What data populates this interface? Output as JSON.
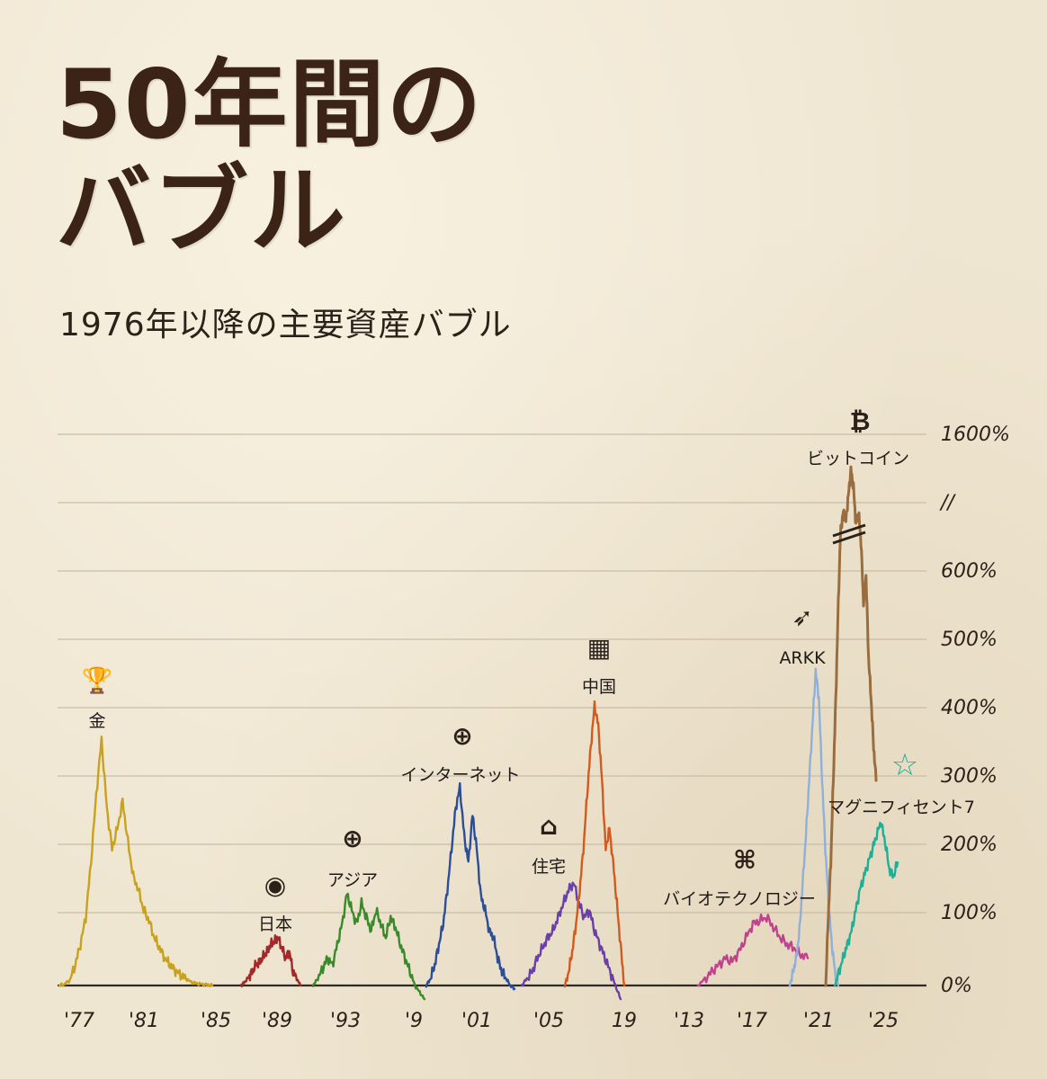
{
  "title_line1": "50年間の",
  "title_line2": "バブル",
  "subtitle": "1976年以降の主要資産バブル",
  "chart_data": {
    "type": "line",
    "title": "50年間のバブル",
    "subtitle": "1976年以降の主要資産バブル",
    "y_axis": {
      "ticks": [
        "0%",
        "100%",
        "200%",
        "300%",
        "400%",
        "500%",
        "600%",
        "//",
        "1600%"
      ],
      "tick_values": [
        0,
        100,
        200,
        300,
        400,
        500,
        600,
        null,
        1600
      ],
      "broken": true,
      "break_label": "//"
    },
    "x_axis": {
      "ticks": [
        "'77",
        "'81",
        "'85",
        "'89",
        "'93",
        "'9",
        "'01",
        "'05",
        "19",
        "'13",
        "'17",
        "'21",
        "'25"
      ]
    },
    "grid": true,
    "series": [
      {
        "name": "金",
        "color": "#c8a21e",
        "icon": "trophy-icon",
        "peak_percent": 360,
        "values": [
          0,
          2,
          8,
          30,
          60,
          100,
          180,
          280,
          360,
          260,
          200,
          230,
          270,
          210,
          160,
          140,
          110,
          95,
          70,
          55,
          40,
          30,
          22,
          15,
          10,
          5,
          3,
          2,
          1,
          0
        ]
      },
      {
        "name": "日本",
        "color": "#a32a2a",
        "icon": "japan-flag-icon",
        "peak_percent": 70,
        "values": [
          0,
          5,
          12,
          20,
          30,
          35,
          42,
          50,
          60,
          65,
          70,
          55,
          40,
          50,
          20,
          10,
          0
        ]
      },
      {
        "name": "アジア",
        "color": "#3a8a2a",
        "icon": "globe-icon",
        "peak_percent": 135,
        "values": [
          0,
          10,
          25,
          40,
          30,
          60,
          90,
          135,
          110,
          90,
          120,
          100,
          80,
          110,
          90,
          70,
          100,
          85,
          60,
          40,
          20,
          0,
          -10,
          -20
        ]
      },
      {
        "name": "インターネット",
        "color": "#2b4e99",
        "icon": "globe-icon",
        "peak_percent": 290,
        "values": [
          0,
          10,
          30,
          60,
          90,
          140,
          200,
          260,
          290,
          220,
          180,
          250,
          200,
          130,
          110,
          80,
          70,
          40,
          20,
          10,
          0,
          -5
        ]
      },
      {
        "name": "住宅",
        "color": "#6b3fa8",
        "icon": "house-icon",
        "peak_percent": 150,
        "values": [
          0,
          10,
          20,
          40,
          55,
          70,
          80,
          100,
          120,
          140,
          150,
          120,
          100,
          110,
          80,
          60,
          40,
          20,
          0,
          -20
        ]
      },
      {
        "name": "中国",
        "color": "#d25a1e",
        "icon": "china-flag-icon",
        "peak_percent": 410,
        "values": [
          0,
          20,
          50,
          90,
          140,
          200,
          280,
          350,
          410,
          380,
          300,
          200,
          230,
          180,
          120,
          60,
          0
        ]
      },
      {
        "name": "バイオテクノロジー",
        "color": "#c0428f",
        "icon": "dna-icon",
        "peak_percent": 100,
        "values": [
          0,
          10,
          20,
          30,
          40,
          35,
          50,
          70,
          90,
          95,
          100,
          85,
          70,
          60,
          55,
          45,
          40
        ]
      },
      {
        "name": "ARKK",
        "color": "#8fb0d8",
        "icon": "rocket-icon",
        "peak_percent": 460,
        "values": [
          0,
          20,
          40,
          80,
          150,
          220,
          300,
          380,
          460,
          420,
          300,
          200,
          120,
          60,
          20,
          0
        ]
      },
      {
        "name": "ビットコイン",
        "color": "#9a6d3e",
        "icon": "bitcoin-icon",
        "peak_percent": 1600,
        "values": [
          0,
          100,
          180,
          300,
          420,
          560,
          680,
          720,
          700,
          760,
          820,
          780,
          690,
          720,
          650,
          560,
          600,
          480,
          420,
          350,
          300
        ]
      },
      {
        "name": "マグニフィセント7",
        "color": "#1fae96",
        "icon": "star-icon",
        "peak_percent": 240,
        "values": [
          0,
          20,
          40,
          60,
          80,
          110,
          140,
          160,
          180,
          200,
          220,
          240,
          210,
          170,
          160,
          180
        ]
      }
    ]
  }
}
